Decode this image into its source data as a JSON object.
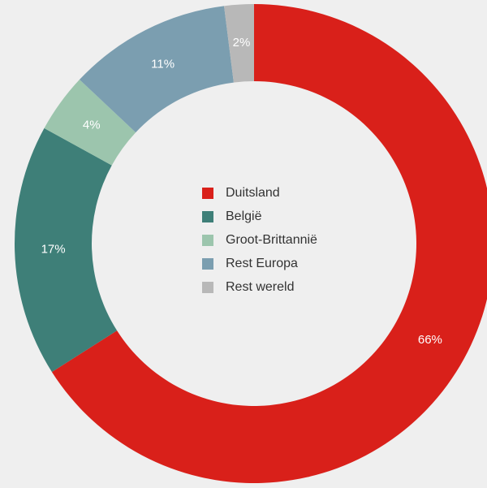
{
  "chart_data": {
    "type": "pie",
    "categories": [
      "Duitsland",
      "België",
      "Groot-Brittannië",
      "Rest Europa",
      "Rest wereld"
    ],
    "values": [
      66,
      17,
      4,
      11,
      2
    ],
    "value_labels": [
      "66%",
      "17%",
      "4%",
      "11%",
      "2%"
    ],
    "colors": [
      "#d9201a",
      "#3e7f78",
      "#9cc5ad",
      "#7b9eb0",
      "#b8b8b8"
    ],
    "legend": "center"
  }
}
